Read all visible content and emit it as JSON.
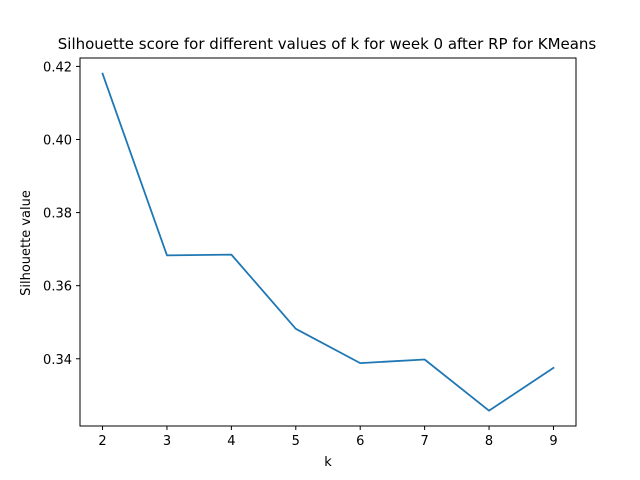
{
  "chart_data": {
    "type": "line",
    "title": "Silhouette score for different values of k for week 0 after RP for KMeans",
    "xlabel": "k",
    "ylabel": "Silhouette value",
    "x_ticks": [
      "2",
      "3",
      "4",
      "5",
      "6",
      "7",
      "8",
      "9"
    ],
    "y_ticks": [
      "0.34",
      "0.36",
      "0.38",
      "0.40",
      "0.42"
    ],
    "xlim": [
      1.65,
      9.35
    ],
    "ylim": [
      0.3216,
      0.4223
    ],
    "grid": false,
    "series": [
      {
        "color": "#1f77b4",
        "x": [
          2,
          3,
          4,
          5,
          6,
          7,
          8,
          9
        ],
        "y": [
          0.418,
          0.3683,
          0.3685,
          0.3482,
          0.3388,
          0.3398,
          0.3258,
          0.3375
        ]
      }
    ]
  }
}
